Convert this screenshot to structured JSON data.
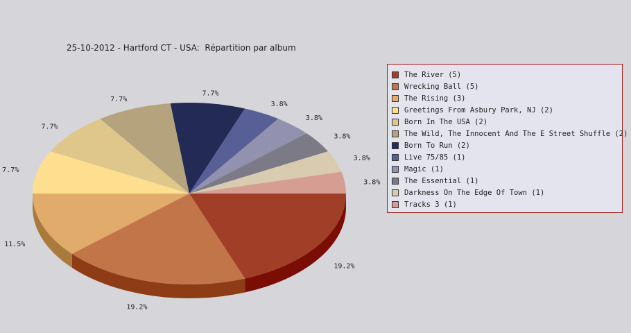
{
  "chart_data": {
    "type": "pie",
    "title": "25-10-2012 - Hartford CT - USA:  Répartition par album",
    "slices": [
      {
        "label": "The River (5)",
        "value": 5,
        "pct": "19.2%",
        "color": "#a13e28",
        "side": "#7a0e05"
      },
      {
        "label": "Wrecking Ball (5)",
        "value": 5,
        "pct": "19.2%",
        "color": "#c27549",
        "side": "#8e3c16"
      },
      {
        "label": "The Rising (3)",
        "value": 3,
        "pct": "11.5%",
        "color": "#e0ab6b",
        "side": "#a97a3c"
      },
      {
        "label": "Greetings From Asbury Park, NJ (2)",
        "value": 2,
        "pct": "7.7%",
        "color": "#fedf90",
        "side": "#c6a75c"
      },
      {
        "label": "Born In The USA (2)",
        "value": 2,
        "pct": "7.7%",
        "color": "#dfc68a",
        "side": "#a8915a"
      },
      {
        "label": "The Wild, The Innocent And The E Street Shuffle (2)",
        "value": 2,
        "pct": "7.7%",
        "color": "#b5a37d",
        "side": "#857450"
      },
      {
        "label": "Born To Run (2)",
        "value": 2,
        "pct": "7.7%",
        "color": "#222a55",
        "side": "#11173a"
      },
      {
        "label": "Live 75/85 (1)",
        "value": 1,
        "pct": "3.8%",
        "color": "#575f96",
        "side": "#373d6a"
      },
      {
        "label": "Magic (1)",
        "value": 1,
        "pct": "3.8%",
        "color": "#9292b0",
        "side": "#66667f"
      },
      {
        "label": "The Essential (1)",
        "value": 1,
        "pct": "3.8%",
        "color": "#7b7a86",
        "side": "#54535d"
      },
      {
        "label": "Darkness On The Edge Of Town (1)",
        "value": 1,
        "pct": "3.8%",
        "color": "#d8cbb0",
        "side": "#a9997c"
      },
      {
        "label": "Tracks 3 (1)",
        "value": 1,
        "pct": "3.8%",
        "color": "#d69d93",
        "side": "#a66e66"
      }
    ],
    "legend_position": "right"
  }
}
